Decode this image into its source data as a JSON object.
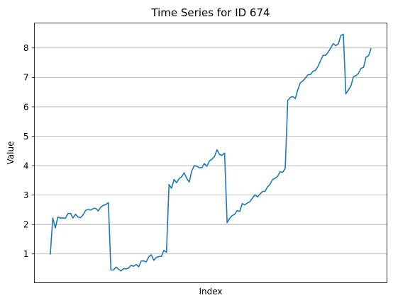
{
  "chart_data": {
    "type": "line",
    "title": "Time Series for ID 674",
    "xlabel": "Index",
    "ylabel": "Value",
    "ylim": [
      0.02,
      8.85
    ],
    "y_ticks": [
      1,
      2,
      3,
      4,
      5,
      6,
      7,
      8
    ],
    "x_ticks_shown": false,
    "grid": "horizontal",
    "series": [
      {
        "color": "#1f77b4",
        "values": [
          0.98,
          2.22,
          1.88,
          2.25,
          2.22,
          2.22,
          2.21,
          2.37,
          2.38,
          2.22,
          2.35,
          2.25,
          2.23,
          2.33,
          2.48,
          2.51,
          2.49,
          2.54,
          2.55,
          2.46,
          2.59,
          2.65,
          2.68,
          2.74,
          0.45,
          0.45,
          0.55,
          0.48,
          0.42,
          0.5,
          0.49,
          0.52,
          0.61,
          0.58,
          0.64,
          0.56,
          0.76,
          0.76,
          0.73,
          0.9,
          0.97,
          0.78,
          0.88,
          0.91,
          0.92,
          1.12,
          1.05,
          3.36,
          3.23,
          3.53,
          3.42,
          3.56,
          3.62,
          3.76,
          3.57,
          3.44,
          3.82,
          4.0,
          3.98,
          3.93,
          3.93,
          4.07,
          3.98,
          4.16,
          4.22,
          4.31,
          4.54,
          4.38,
          4.35,
          4.43,
          2.06,
          2.21,
          2.3,
          2.35,
          2.47,
          2.44,
          2.71,
          2.67,
          2.73,
          2.77,
          2.89,
          3.01,
          2.94,
          3.03,
          3.12,
          3.13,
          3.28,
          3.37,
          3.53,
          3.57,
          3.64,
          3.79,
          3.77,
          3.91,
          6.21,
          6.32,
          6.35,
          6.28,
          6.59,
          6.82,
          6.88,
          6.98,
          7.09,
          7.1,
          7.21,
          7.24,
          7.38,
          7.57,
          7.75,
          7.75,
          7.86,
          8.0,
          8.15,
          8.08,
          8.14,
          8.42,
          8.47,
          6.44,
          6.57,
          6.71,
          7.02,
          7.06,
          7.14,
          7.31,
          7.34,
          7.69,
          7.74,
          7.99
        ]
      }
    ]
  }
}
